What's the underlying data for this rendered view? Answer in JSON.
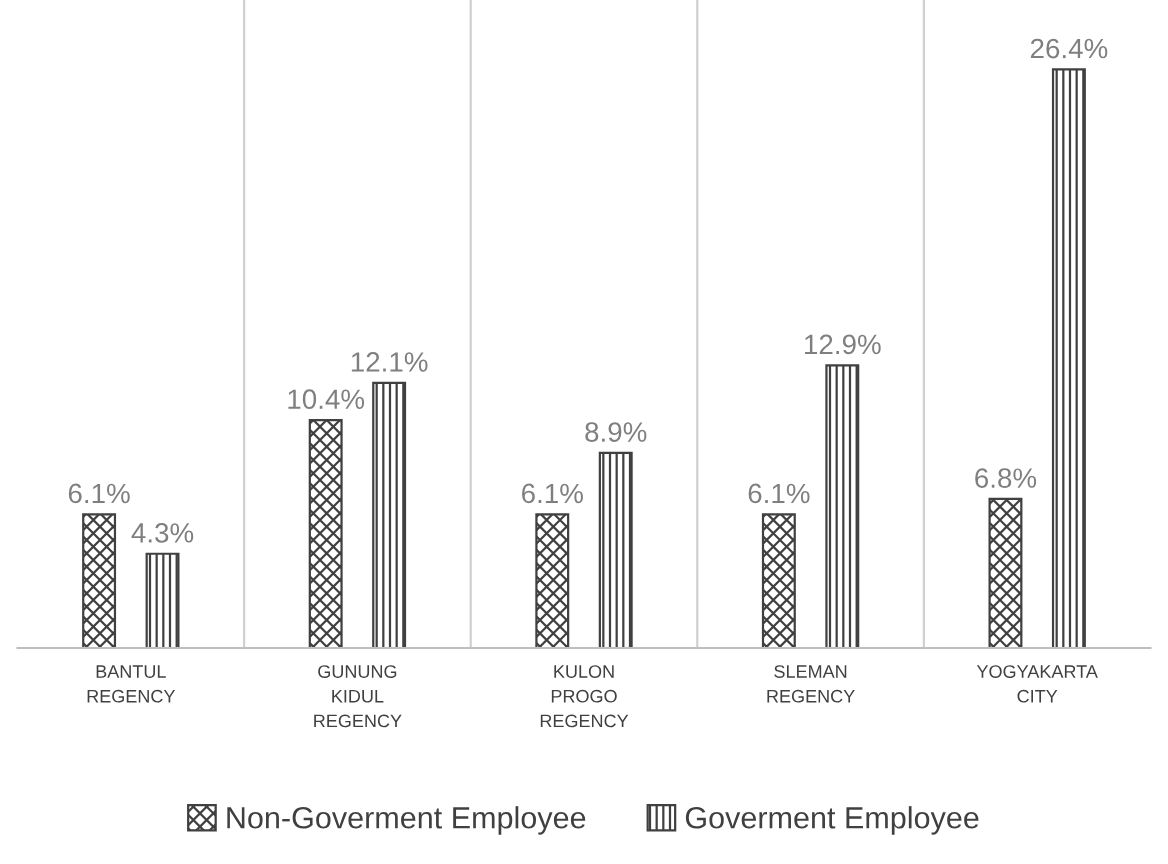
{
  "chart_data": {
    "type": "bar",
    "categories": [
      "BANTUL REGENCY",
      "GUNUNG KIDUL REGENCY",
      "KULON PROGO REGENCY",
      "SLEMAN REGENCY",
      "YOGYAKARTA CITY"
    ],
    "series": [
      {
        "name": "Non-Goverment Employee",
        "color": "#404040",
        "values": [
          6.1,
          10.4,
          6.1,
          6.1,
          6.8
        ],
        "value_labels": [
          "6.1%",
          "10.4%",
          "6.1%",
          "6.1%",
          "6.8%"
        ]
      },
      {
        "name": "Goverment Employee",
        "color": "#404040",
        "values": [
          4.3,
          12.1,
          8.9,
          12.9,
          26.4
        ],
        "value_labels": [
          "4.3%",
          "12.1%",
          "8.9%",
          "12.9%",
          "26.4%"
        ]
      }
    ],
    "grid": "x",
    "legend": "bottom"
  }
}
